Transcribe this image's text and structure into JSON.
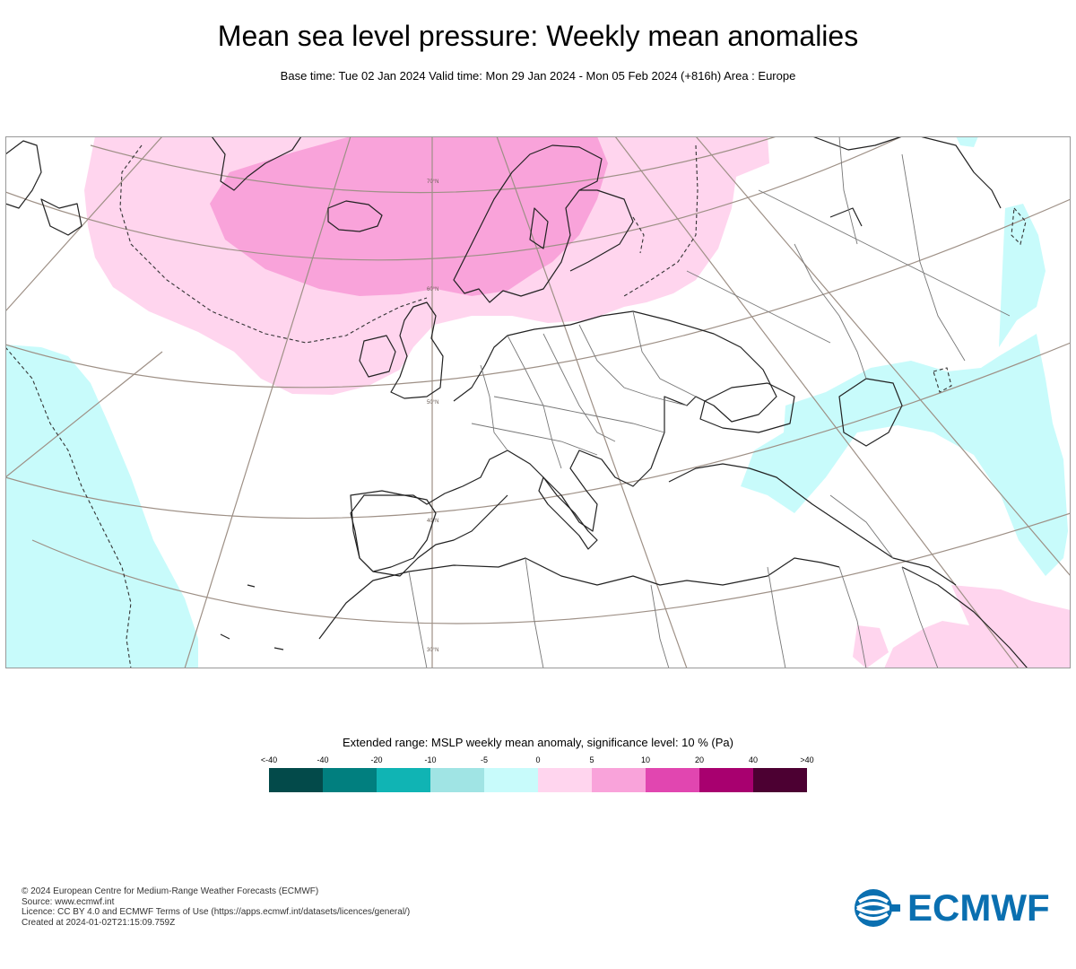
{
  "title": "Mean sea level pressure: Weekly mean anomalies",
  "subtitle": "Base time: Tue 02 Jan 2024 Valid time: Mon 29 Jan 2024 - Mon 05 Feb 2024 (+816h) Area : Europe",
  "map": {
    "latitude_labels": [
      "70°N",
      "60°N",
      "50°N",
      "40°N",
      "30°N"
    ],
    "colors": {
      "positive_0_5": "#ffd5ee",
      "positive_5_10": "#f9a3da",
      "negative_5_0": "#c8fbfb",
      "coast": "#222222",
      "graticule": "#9e9086",
      "border": "#777777"
    }
  },
  "legend": {
    "title": "Extended range: MSLP weekly mean anomaly, significance level: 10 % (Pa)",
    "labels": [
      "<-40",
      "-40",
      "-20",
      "-10",
      "-5",
      "0",
      "5",
      "10",
      "20",
      "40",
      ">40"
    ],
    "colors": [
      "#034a4a",
      "#017f7f",
      "#10b4b4",
      "#a0e4e4",
      "#c8fbfb",
      "#ffd5ee",
      "#f9a3da",
      "#e146b0",
      "#a8006f",
      "#4c0032"
    ]
  },
  "footer": {
    "lines": [
      "© 2024 European Centre for Medium-Range Weather Forecasts (ECMWF)",
      "Source: www.ecmwf.int",
      "Licence: CC BY 4.0 and ECMWF Terms of Use (https://apps.ecmwf.int/datasets/licences/general/)",
      "Created at 2024-01-02T21:15:09.759Z"
    ]
  },
  "logo": {
    "text": "ECMWF",
    "color": "#0a6fb0"
  }
}
